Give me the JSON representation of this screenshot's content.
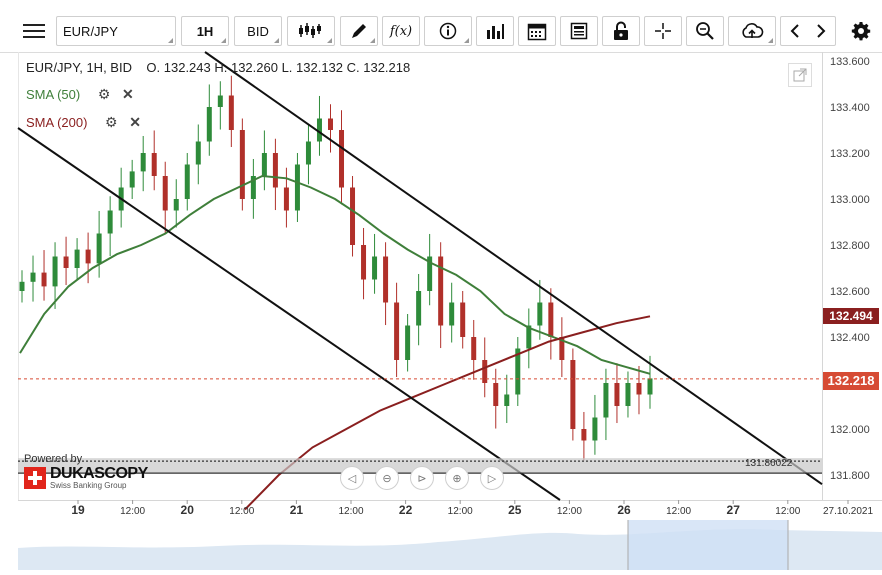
{
  "toolbar": {
    "menu_icon": "hamburger-icon",
    "instrument": "EUR/JPY",
    "timeframe": "1H",
    "side": "BID",
    "icons": [
      "candlestick-icon",
      "pencil-icon",
      "function-icon",
      "info-icon",
      "bar-chart-icon",
      "calendar-icon",
      "news-icon",
      "lock-icon",
      "crosshair-icon",
      "zoom-icon",
      "cloud-upload-icon",
      "chevron-left-icon",
      "chevron-right-icon",
      "gear-icon"
    ],
    "function_label": "f(x)"
  },
  "legend": {
    "symbol_line": "EUR/JPY, 1H, BID",
    "ohlc": "O. 132.243 H. 132.260 L. 132.132 C. 132.218",
    "sma50": "SMA (50)",
    "sma200": "SMA (200)"
  },
  "branding": {
    "powered_by": "Powered by",
    "name": "DUKASCOPY",
    "tagline": "Swiss Banking Group"
  },
  "colors": {
    "bull": "#2e8b3a",
    "bear": "#b0302a",
    "sma50": "#3f7f3a",
    "sma200": "#8a1f1f",
    "current_price": "#d64b34",
    "sma200_box": "#8a1f1f"
  },
  "chart_data": {
    "type": "candlestick",
    "title": "EUR/JPY, 1H, BID",
    "ylim": [
      131.8,
      133.6
    ],
    "y_ticks": [
      "133.600",
      "133.400",
      "133.200",
      "133.000",
      "132.800",
      "132.600",
      "132.400",
      "132.000",
      "131.800"
    ],
    "x_ticks": [
      "19",
      "12:00",
      "20",
      "12:00",
      "21",
      "12:00",
      "22",
      "12:00",
      "25",
      "12:00",
      "26",
      "12:00",
      "27",
      "12:00",
      "27.10.2021"
    ],
    "current_price": "132.218",
    "sma200_value": "132.494",
    "horizontal_level": "131.86022",
    "close_series": [
      132.64,
      132.68,
      132.62,
      132.75,
      132.7,
      132.78,
      132.72,
      132.85,
      132.95,
      133.05,
      133.12,
      133.2,
      133.1,
      132.95,
      133.0,
      133.15,
      133.25,
      133.4,
      133.45,
      133.3,
      133.0,
      133.1,
      133.2,
      133.05,
      132.95,
      133.15,
      133.25,
      133.35,
      133.3,
      133.05,
      132.8,
      132.65,
      132.75,
      132.55,
      132.3,
      132.45,
      132.6,
      132.75,
      132.45,
      132.55,
      132.4,
      132.3,
      132.2,
      132.1,
      132.15,
      132.35,
      132.45,
      132.55,
      132.4,
      132.3,
      132.0,
      131.95,
      132.05,
      132.2,
      132.1,
      132.2,
      132.15,
      132.22
    ],
    "sma50_series": [
      132.33,
      132.5,
      132.62,
      132.7,
      132.76,
      132.8,
      132.85,
      132.93,
      133.0,
      133.05,
      133.1,
      133.09,
      133.05,
      133.0,
      132.93,
      132.85,
      132.78,
      132.72,
      132.67,
      132.6,
      132.5,
      132.44,
      132.4,
      132.36,
      132.3,
      132.27,
      132.24
    ],
    "sma200_series": [
      131.65,
      131.8,
      131.92,
      132.0,
      132.08,
      132.14,
      132.2,
      132.26,
      132.32,
      132.38,
      132.42,
      132.46,
      132.49
    ],
    "channel_upper": [
      [
        133.65,
        0
      ],
      [
        131.75,
        1
      ]
    ],
    "channel_lower": [
      [
        133.3,
        0
      ],
      [
        131.7,
        1
      ]
    ]
  }
}
